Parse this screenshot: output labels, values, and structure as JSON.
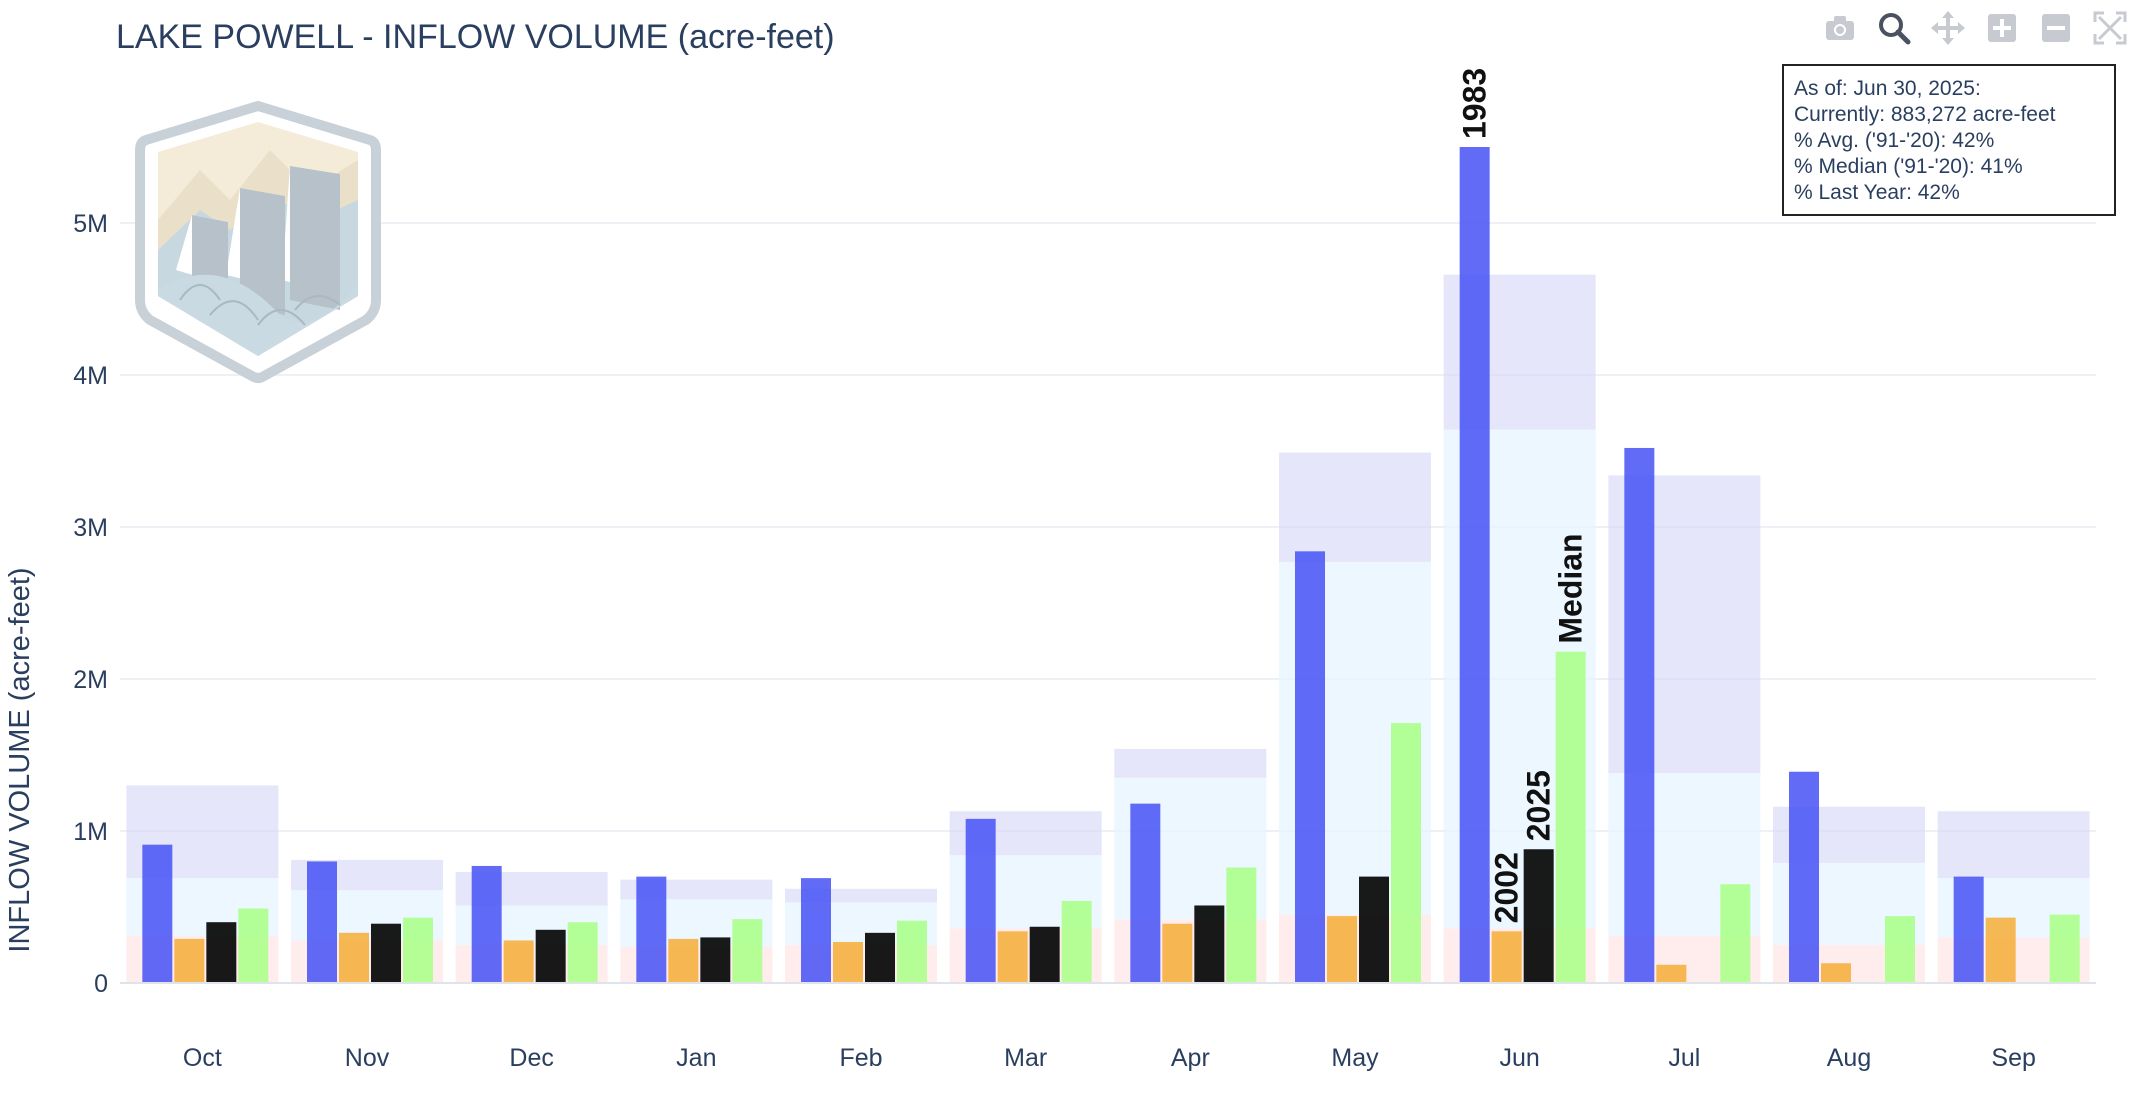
{
  "title": "LAKE POWELL - INFLOW VOLUME (acre-feet)",
  "info_box": {
    "line1": "As of: Jun 30, 2025:",
    "line2": "Currently: 883,272 acre-feet",
    "line3": "% Avg. ('91-'20): 42%",
    "line4": "% Median ('91-'20): 41%",
    "line5": "% Last Year: 42%"
  },
  "modebar": [
    "camera-icon",
    "zoom-icon",
    "pan-icon",
    "zoom-in-icon",
    "zoom-out-icon",
    "autoscale-icon"
  ],
  "colors": {
    "max_1983": "#4b57f5",
    "min_2002": "#f5b041",
    "current_2025": "#0d0d0d",
    "median": "#adff8c",
    "band_top": "#d9d9f7",
    "band_mid": "#e6f4ff",
    "band_low": "#ffe8e8",
    "text": "#2a3f5f",
    "grid": "#e8ecf2"
  },
  "chart_data": {
    "type": "bar",
    "title": "LAKE POWELL - INFLOW VOLUME (acre-feet)",
    "xlabel": "",
    "ylabel": "INFLOW VOLUME (acre-feet)",
    "ylim": [
      0,
      5900000
    ],
    "yticks": [
      0,
      1000000,
      2000000,
      3000000,
      4000000,
      5000000
    ],
    "ytick_labels": [
      "0",
      "1M",
      "2M",
      "3M",
      "4M",
      "5M"
    ],
    "categories": [
      "Oct",
      "Nov",
      "Dec",
      "Jan",
      "Feb",
      "Mar",
      "Apr",
      "May",
      "Jun",
      "Jul",
      "Aug",
      "Sep"
    ],
    "series": [
      {
        "name": "1983",
        "color": "#4b57f5",
        "values": [
          910000,
          800000,
          770000,
          700000,
          690000,
          1080000,
          1180000,
          2840000,
          5500000,
          3520000,
          1390000,
          700000
        ]
      },
      {
        "name": "2002",
        "color": "#f5b041",
        "values": [
          290000,
          330000,
          280000,
          290000,
          270000,
          340000,
          390000,
          440000,
          340000,
          120000,
          130000,
          430000
        ]
      },
      {
        "name": "2025",
        "color": "#0d0d0d",
        "values": [
          400000,
          390000,
          350000,
          300000,
          330000,
          370000,
          510000,
          700000,
          880000,
          null,
          null,
          null
        ]
      },
      {
        "name": "Median",
        "color": "#adff8c",
        "values": [
          490000,
          430000,
          400000,
          420000,
          410000,
          540000,
          760000,
          1710000,
          2180000,
          650000,
          440000,
          450000
        ]
      }
    ],
    "range_bands": {
      "max": [
        1300000,
        810000,
        730000,
        680000,
        620000,
        1130000,
        1540000,
        3490000,
        4660000,
        3340000,
        1160000,
        1130000
      ],
      "p90": [
        690000,
        610000,
        510000,
        550000,
        530000,
        840000,
        1350000,
        2770000,
        3640000,
        1380000,
        790000,
        690000
      ],
      "p10": [
        310000,
        280000,
        250000,
        240000,
        250000,
        360000,
        420000,
        450000,
        360000,
        310000,
        250000,
        300000
      ]
    },
    "annotations": [
      {
        "text": "1983",
        "category": "Jun",
        "series": "1983"
      },
      {
        "text": "2002",
        "category": "Jun",
        "series": "2002"
      },
      {
        "text": "2025",
        "category": "Jun",
        "series": "2025"
      },
      {
        "text": "Median",
        "category": "Jun",
        "series": "Median"
      }
    ],
    "grid": true,
    "legend": "none"
  }
}
